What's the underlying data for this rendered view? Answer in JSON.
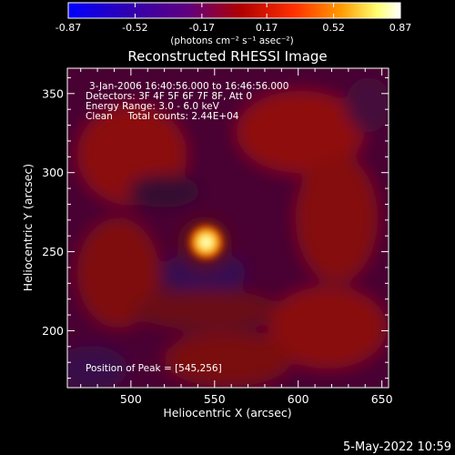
{
  "chart_data": {
    "type": "heatmap",
    "title": "Reconstructed RHESSI Image",
    "xlabel": "Heliocentric X (arcsec)",
    "ylabel": "Heliocentric Y (arcsec)",
    "xlim": [
      462,
      654
    ],
    "ylim": [
      164,
      366
    ],
    "x_ticks": [
      500,
      550,
      600,
      650
    ],
    "y_ticks": [
      200,
      250,
      300,
      350
    ],
    "colorbar": {
      "label": "(photons cm⁻² s⁻¹ asec⁻²)",
      "range": [
        -0.87,
        0.87
      ],
      "tick_values": [
        -0.87,
        -0.52,
        -0.17,
        0.17,
        0.52,
        0.87
      ],
      "tick_labels": [
        "-0.87",
        "-0.52",
        "-0.17",
        "0.17",
        "0.52",
        "0.87"
      ],
      "colors": [
        "#0000ff",
        "#2a00a0",
        "#5a0070",
        "#b00000",
        "#ff3000",
        "#ff9000",
        "#ffff80",
        "#ffffff"
      ]
    },
    "annotations": [
      "3-Jan-2006 16:40:56.000 to 16:46:56.000",
      "Detectors: 3F 4F 5F 6F 7F 8F, Att 0",
      "Energy Range: 3.0 - 6.0 keV",
      "Clean     Total counts: 2.44E+04",
      "Position of Peak = [545,256]"
    ],
    "peak": {
      "x": 545,
      "y": 256,
      "value": 0.87
    },
    "footer": "5-May-2022 10:59"
  }
}
